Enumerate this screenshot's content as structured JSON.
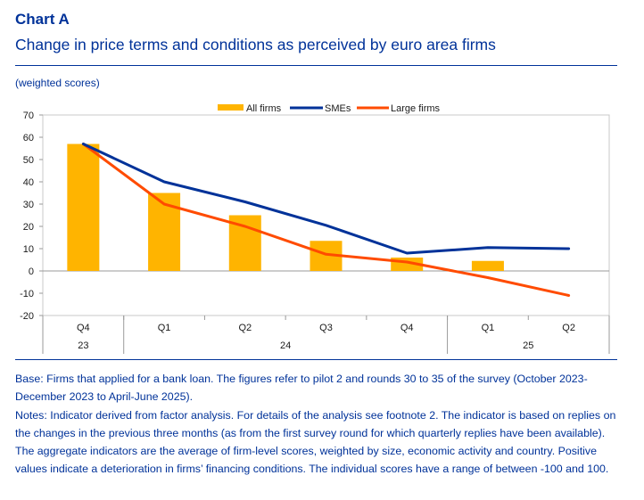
{
  "header": {
    "label": "Chart A",
    "title": "Change in price terms and conditions as perceived by euro area firms",
    "unit_note": "(weighted scores)"
  },
  "chart_data": {
    "type": "bar",
    "categories": [
      "Q4",
      "Q1",
      "Q2",
      "Q3",
      "Q4",
      "Q1",
      "Q2"
    ],
    "year_labels": [
      {
        "label": "23",
        "from": 0,
        "to": 0
      },
      {
        "label": "24",
        "from": 1,
        "to": 4
      },
      {
        "label": "25",
        "from": 5,
        "to": 6
      }
    ],
    "series": [
      {
        "name": "All firms",
        "kind": "bar",
        "color": "#FFB400",
        "values": [
          57,
          35,
          25,
          13.5,
          6,
          4.5,
          null
        ]
      },
      {
        "name": "SMEs",
        "kind": "line",
        "color": "#003299",
        "values": [
          57,
          40,
          31,
          20.5,
          8,
          10.5,
          10
        ]
      },
      {
        "name": "Large firms",
        "kind": "line",
        "color": "#FF4B00",
        "values": [
          57,
          30,
          20,
          7.5,
          4,
          -3,
          -11
        ]
      }
    ],
    "ylim": [
      -20,
      70
    ],
    "yticks": [
      "70",
      "60",
      "50",
      "40",
      "30",
      "20",
      "10",
      "0",
      "-10",
      "-20"
    ],
    "legend_position": "top-center"
  },
  "footer": {
    "base": "Base: Firms that applied for a bank loan. The figures refer to pilot 2 and rounds 30 to 35 of the survey (October 2023-December 2023 to April-June 2025).",
    "notes": "Notes: Indicator derived from factor analysis. For details of the analysis see footnote 2. The indicator is based on replies on the changes in the previous three months (as from the first survey round for which quarterly replies have been available). The aggregate indicators are the average of firm-level scores, weighted by size, economic activity and country. Positive values indicate a deterioration in firms’ financing conditions. The individual scores have a range of between -100 and 100."
  }
}
